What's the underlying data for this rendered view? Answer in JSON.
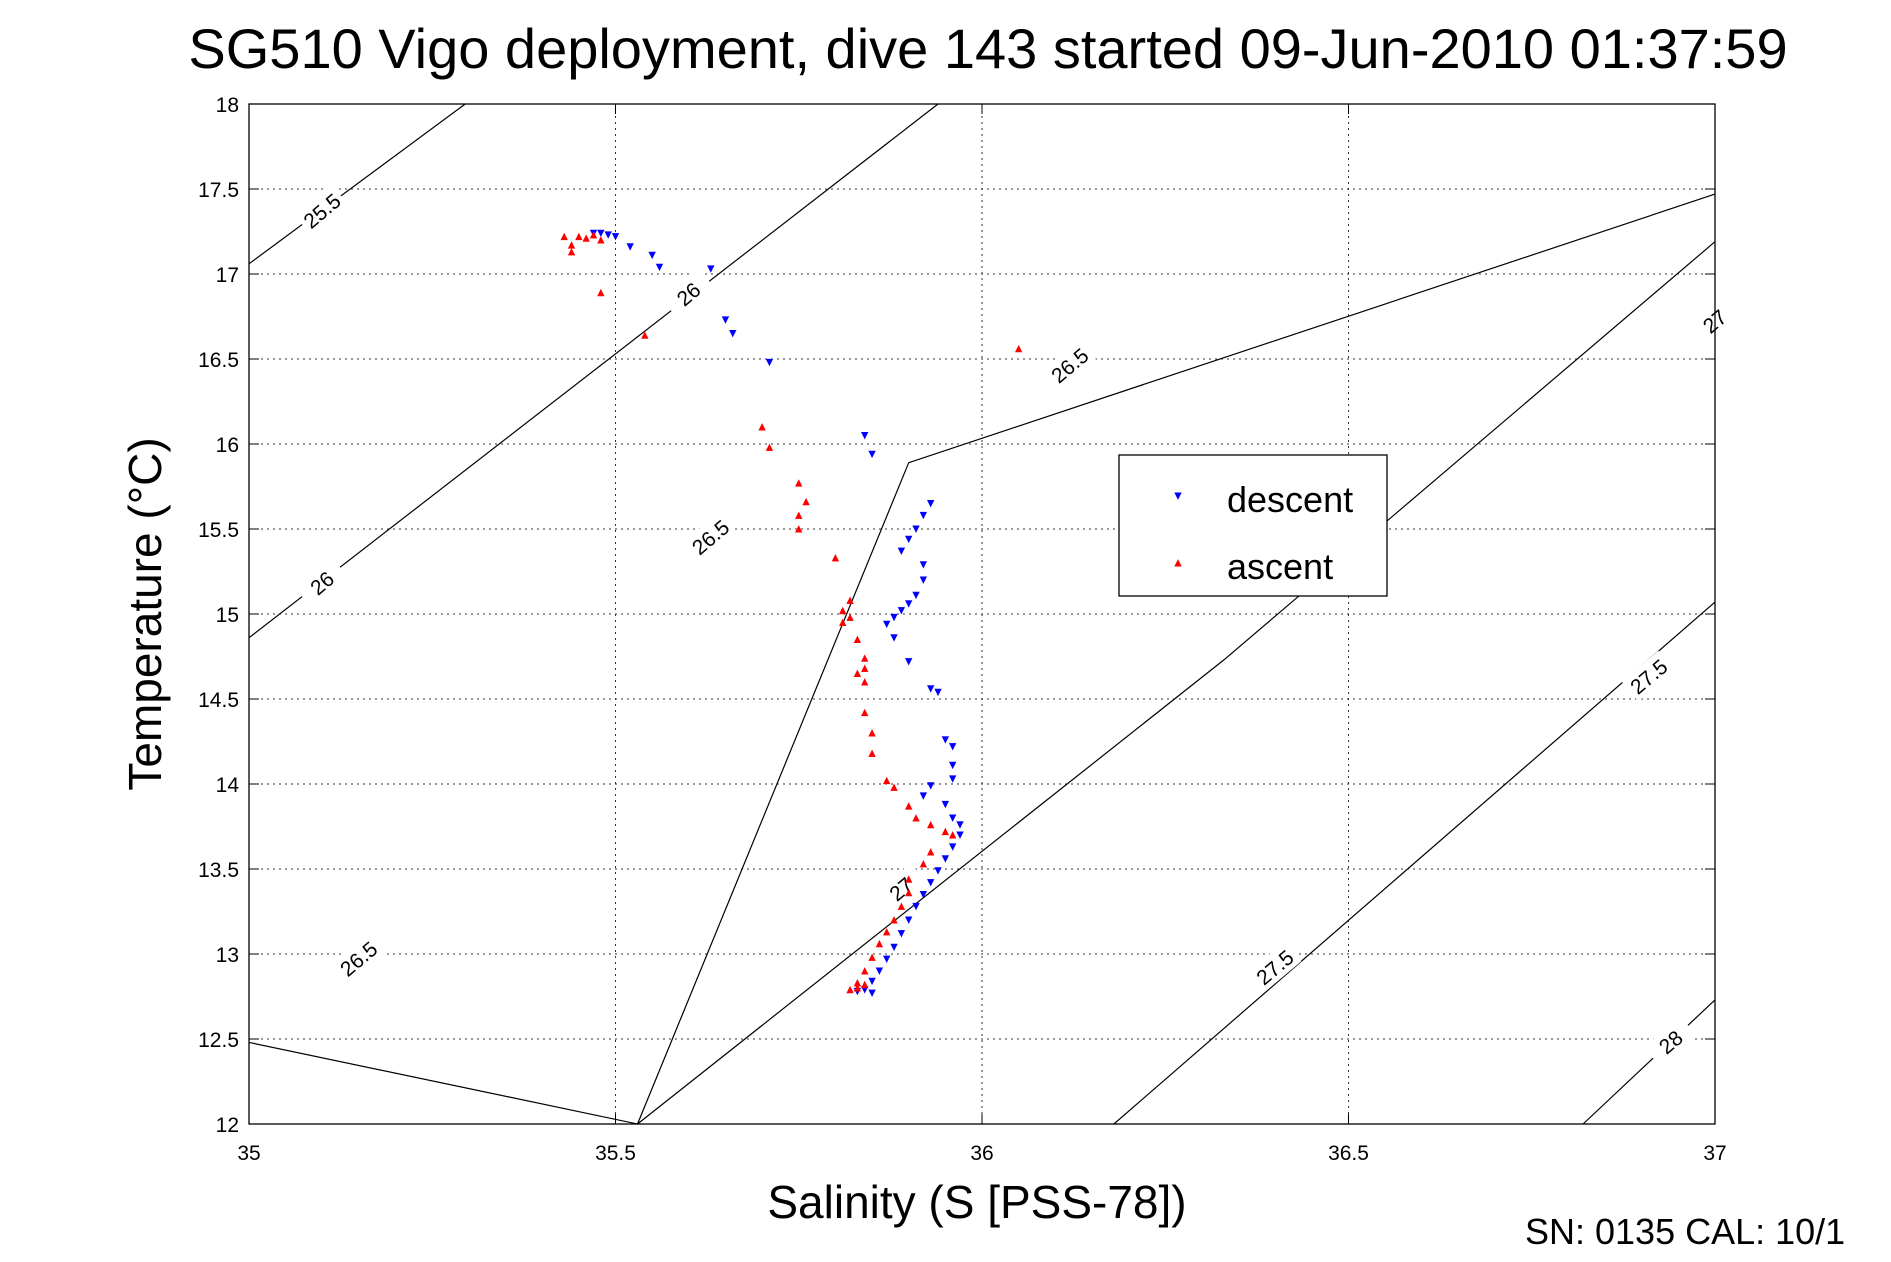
{
  "chart_data": {
    "type": "scatter",
    "title": "SG510 Vigo deployment, dive 143 started 09-Jun-2010 01:37:59",
    "xlabel": "Salinity (S [PSS-78])",
    "ylabel": "Temperature (°C)",
    "xlim": [
      35,
      37
    ],
    "ylim": [
      12,
      18
    ],
    "x_ticks": [
      "35",
      "35.5",
      "36",
      "36.5",
      "37"
    ],
    "y_ticks": [
      "12",
      "12.5",
      "13",
      "13.5",
      "14",
      "14.5",
      "15",
      "15.5",
      "16",
      "16.5",
      "17",
      "17.5",
      "18"
    ],
    "grid": true,
    "legend_position": "center-right",
    "density_contours": [
      {
        "level": "25.5",
        "points": [
          [
            35,
            17.06
          ],
          [
            35.295,
            18
          ]
        ],
        "labels": [
          [
            35.1,
            17.37
          ]
        ]
      },
      {
        "level": "26",
        "points": [
          [
            35,
            14.86
          ],
          [
            35.94,
            18
          ]
        ],
        "labels": [
          [
            35.1,
            15.18
          ],
          [
            35.6,
            16.88
          ]
        ]
      },
      {
        "level": "26.5",
        "points": [
          [
            35,
            12.48
          ],
          [
            35.53,
            12
          ],
          [
            35.9,
            15.89
          ],
          [
            37,
            17.47
          ]
        ],
        "labels": [
          [
            35.15,
            12.97
          ],
          [
            35.63,
            15.45
          ],
          [
            36.12,
            16.46
          ]
        ]
      },
      {
        "level": "27",
        "points": [
          [
            35.53,
            12
          ],
          [
            36.33,
            14.73
          ],
          [
            37,
            17.19
          ]
        ],
        "labels": [
          [
            35.89,
            13.38
          ],
          [
            37,
            16.72
          ]
        ]
      },
      {
        "level": "27.5",
        "points": [
          [
            36.18,
            12
          ],
          [
            37,
            15.07
          ]
        ],
        "labels": [
          [
            36.4,
            12.92
          ],
          [
            36.91,
            14.63
          ]
        ]
      },
      {
        "level": "28",
        "points": [
          [
            36.82,
            12
          ],
          [
            37,
            12.73
          ]
        ],
        "labels": [
          [
            36.94,
            12.48
          ]
        ]
      }
    ],
    "series": [
      {
        "name": "descent",
        "color": "#0000ff",
        "marker": "triangle-down",
        "points": [
          [
            35.47,
            17.24
          ],
          [
            35.48,
            17.24
          ],
          [
            35.49,
            17.23
          ],
          [
            35.5,
            17.22
          ],
          [
            35.52,
            17.16
          ],
          [
            35.55,
            17.11
          ],
          [
            35.56,
            17.04
          ],
          [
            35.63,
            17.03
          ],
          [
            35.65,
            16.73
          ],
          [
            35.66,
            16.65
          ],
          [
            35.71,
            16.48
          ],
          [
            35.84,
            16.05
          ],
          [
            35.85,
            15.94
          ],
          [
            35.93,
            15.65
          ],
          [
            35.92,
            15.58
          ],
          [
            35.91,
            15.5
          ],
          [
            35.9,
            15.44
          ],
          [
            35.89,
            15.37
          ],
          [
            35.92,
            15.29
          ],
          [
            35.92,
            15.2
          ],
          [
            35.91,
            15.11
          ],
          [
            35.9,
            15.06
          ],
          [
            35.89,
            15.02
          ],
          [
            35.88,
            14.98
          ],
          [
            35.87,
            14.94
          ],
          [
            35.88,
            14.86
          ],
          [
            35.9,
            14.72
          ],
          [
            35.93,
            14.56
          ],
          [
            35.94,
            14.54
          ],
          [
            35.95,
            14.26
          ],
          [
            35.96,
            14.22
          ],
          [
            35.96,
            14.11
          ],
          [
            35.96,
            14.03
          ],
          [
            35.93,
            13.99
          ],
          [
            35.92,
            13.93
          ],
          [
            35.95,
            13.88
          ],
          [
            35.96,
            13.8
          ],
          [
            35.97,
            13.76
          ],
          [
            35.97,
            13.7
          ],
          [
            35.96,
            13.63
          ],
          [
            35.95,
            13.56
          ],
          [
            35.94,
            13.49
          ],
          [
            35.93,
            13.42
          ],
          [
            35.92,
            13.35
          ],
          [
            35.91,
            13.28
          ],
          [
            35.9,
            13.2
          ],
          [
            35.89,
            13.12
          ],
          [
            35.88,
            13.04
          ],
          [
            35.87,
            12.97
          ],
          [
            35.86,
            12.9
          ],
          [
            35.85,
            12.84
          ],
          [
            35.84,
            12.79
          ],
          [
            35.85,
            12.77
          ],
          [
            35.83,
            12.78
          ]
        ]
      },
      {
        "name": "ascent",
        "color": "#ff0000",
        "marker": "triangle-up",
        "points": [
          [
            35.43,
            17.22
          ],
          [
            35.44,
            17.17
          ],
          [
            35.45,
            17.22
          ],
          [
            35.46,
            17.21
          ],
          [
            35.47,
            17.23
          ],
          [
            35.48,
            17.2
          ],
          [
            35.44,
            17.13
          ],
          [
            35.48,
            16.89
          ],
          [
            35.54,
            16.64
          ],
          [
            36.05,
            16.56
          ],
          [
            35.7,
            16.1
          ],
          [
            35.71,
            15.98
          ],
          [
            35.75,
            15.77
          ],
          [
            35.76,
            15.66
          ],
          [
            35.75,
            15.58
          ],
          [
            35.75,
            15.5
          ],
          [
            35.8,
            15.33
          ],
          [
            35.82,
            15.08
          ],
          [
            35.81,
            15.02
          ],
          [
            35.82,
            14.98
          ],
          [
            35.81,
            14.95
          ],
          [
            35.83,
            14.85
          ],
          [
            35.84,
            14.74
          ],
          [
            35.84,
            14.68
          ],
          [
            35.83,
            14.65
          ],
          [
            35.84,
            14.6
          ],
          [
            35.84,
            14.42
          ],
          [
            35.85,
            14.3
          ],
          [
            35.85,
            14.18
          ],
          [
            35.87,
            14.02
          ],
          [
            35.88,
            13.98
          ],
          [
            35.9,
            13.87
          ],
          [
            35.91,
            13.8
          ],
          [
            35.93,
            13.76
          ],
          [
            35.95,
            13.72
          ],
          [
            35.96,
            13.7
          ],
          [
            35.93,
            13.6
          ],
          [
            35.92,
            13.53
          ],
          [
            35.9,
            13.44
          ],
          [
            35.9,
            13.36
          ],
          [
            35.89,
            13.28
          ],
          [
            35.88,
            13.2
          ],
          [
            35.87,
            13.13
          ],
          [
            35.86,
            13.06
          ],
          [
            35.85,
            12.98
          ],
          [
            35.84,
            12.9
          ],
          [
            35.83,
            12.83
          ],
          [
            35.82,
            12.79
          ],
          [
            35.83,
            12.8
          ],
          [
            35.84,
            12.82
          ]
        ]
      }
    ]
  },
  "footer_text": "SN: 0135  CAL: 10/1"
}
